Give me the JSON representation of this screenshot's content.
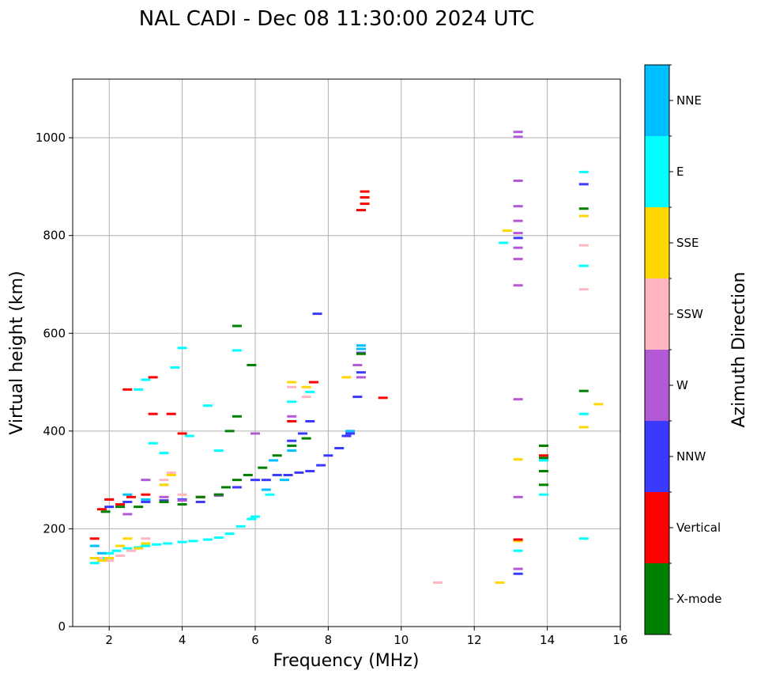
{
  "chart_data": {
    "type": "scatter",
    "title": "NAL CADI - Dec 08 11:30:00 2024 UTC",
    "xlabel": "Frequency (MHz)",
    "ylabel": "Virtual height (km)",
    "xlim": [
      1,
      16
    ],
    "ylim": [
      0,
      1120
    ],
    "xticks": [
      2,
      4,
      6,
      8,
      10,
      12,
      14,
      16
    ],
    "yticks": [
      0,
      200,
      400,
      600,
      800,
      1000
    ],
    "grid": true,
    "colorbar": {
      "label": "Azimuth Direction",
      "categories": [
        {
          "name": "X-mode",
          "color": "#008000"
        },
        {
          "name": "Vertical",
          "color": "#ff0000"
        },
        {
          "name": "NNW",
          "color": "#3a3aff"
        },
        {
          "name": "W",
          "color": "#b259d6"
        },
        {
          "name": "SSW",
          "color": "#ffb6c1"
        },
        {
          "name": "SSE",
          "color": "#ffd700"
        },
        {
          "name": "E",
          "color": "#00ffff"
        },
        {
          "name": "NNE",
          "color": "#00bfff"
        }
      ]
    },
    "series": [
      {
        "name": "E",
        "points": [
          [
            1.6,
            130
          ],
          [
            1.8,
            140
          ],
          [
            2.0,
            150
          ],
          [
            2.2,
            155
          ],
          [
            2.5,
            160
          ],
          [
            2.8,
            162
          ],
          [
            3.0,
            165
          ],
          [
            3.3,
            168
          ],
          [
            3.6,
            170
          ],
          [
            4.0,
            173
          ],
          [
            4.3,
            175
          ],
          [
            4.7,
            178
          ],
          [
            5.0,
            182
          ],
          [
            5.3,
            190
          ],
          [
            5.6,
            205
          ],
          [
            5.9,
            220
          ],
          [
            6.0,
            225
          ],
          [
            2.8,
            485
          ],
          [
            3.0,
            505
          ],
          [
            3.2,
            375
          ],
          [
            3.5,
            355
          ],
          [
            3.8,
            530
          ],
          [
            4.0,
            570
          ],
          [
            4.2,
            390
          ],
          [
            4.7,
            452
          ],
          [
            5.0,
            360
          ],
          [
            5.5,
            565
          ],
          [
            6.4,
            270
          ],
          [
            7.0,
            460
          ],
          [
            7.5,
            480
          ],
          [
            13.2,
            155
          ],
          [
            13.9,
            270
          ],
          [
            13.9,
            340
          ],
          [
            12.8,
            785
          ],
          [
            15.0,
            180
          ],
          [
            15.0,
            435
          ],
          [
            15.0,
            738
          ],
          [
            15.0,
            930
          ]
        ]
      },
      {
        "name": "NNE",
        "points": [
          [
            1.6,
            165
          ],
          [
            1.8,
            150
          ],
          [
            2.5,
            270
          ],
          [
            3.0,
            260
          ],
          [
            3.5,
            290
          ],
          [
            6.5,
            340
          ],
          [
            7.0,
            360
          ],
          [
            8.6,
            400
          ],
          [
            8.9,
            575
          ],
          [
            8.9,
            568
          ],
          [
            6.3,
            280
          ],
          [
            6.8,
            300
          ]
        ]
      },
      {
        "name": "NNW",
        "points": [
          [
            2.0,
            245
          ],
          [
            2.5,
            255
          ],
          [
            3.0,
            255
          ],
          [
            3.5,
            258
          ],
          [
            4.0,
            260
          ],
          [
            4.5,
            255
          ],
          [
            5.0,
            270
          ],
          [
            5.5,
            285
          ],
          [
            6.0,
            300
          ],
          [
            6.3,
            300
          ],
          [
            6.6,
            310
          ],
          [
            6.9,
            310
          ],
          [
            7.2,
            315
          ],
          [
            7.5,
            318
          ],
          [
            7.8,
            330
          ],
          [
            8.0,
            350
          ],
          [
            8.3,
            365
          ],
          [
            8.5,
            390
          ],
          [
            8.6,
            395
          ],
          [
            8.8,
            470
          ],
          [
            8.9,
            560
          ],
          [
            8.9,
            520
          ],
          [
            7.0,
            380
          ],
          [
            7.3,
            395
          ],
          [
            7.7,
            640
          ],
          [
            7.5,
            420
          ],
          [
            13.2,
            108
          ],
          [
            13.2,
            795
          ],
          [
            15.0,
            905
          ]
        ]
      },
      {
        "name": "W",
        "points": [
          [
            2.0,
            260
          ],
          [
            2.5,
            230
          ],
          [
            3.0,
            300
          ],
          [
            3.5,
            265
          ],
          [
            4.0,
            258
          ],
          [
            5.0,
            268
          ],
          [
            6.0,
            395
          ],
          [
            7.0,
            430
          ],
          [
            8.8,
            535
          ],
          [
            8.9,
            510
          ],
          [
            13.2,
            118
          ],
          [
            13.2,
            265
          ],
          [
            13.2,
            465
          ],
          [
            13.2,
            698
          ],
          [
            13.2,
            752
          ],
          [
            13.2,
            775
          ],
          [
            13.2,
            805
          ],
          [
            13.2,
            830
          ],
          [
            13.2,
            860
          ],
          [
            13.2,
            912
          ],
          [
            13.2,
            1002
          ],
          [
            13.2,
            1012
          ]
        ]
      },
      {
        "name": "SSW",
        "points": [
          [
            1.7,
            140
          ],
          [
            2.0,
            135
          ],
          [
            2.3,
            145
          ],
          [
            2.6,
            155
          ],
          [
            3.0,
            180
          ],
          [
            3.5,
            300
          ],
          [
            3.7,
            315
          ],
          [
            4.0,
            270
          ],
          [
            7.0,
            490
          ],
          [
            7.4,
            470
          ],
          [
            11.0,
            90
          ],
          [
            15.0,
            690
          ],
          [
            15.0,
            780
          ]
        ]
      },
      {
        "name": "SSE",
        "points": [
          [
            1.6,
            140
          ],
          [
            1.8,
            135
          ],
          [
            2.0,
            140
          ],
          [
            2.3,
            165
          ],
          [
            2.5,
            180
          ],
          [
            2.8,
            160
          ],
          [
            3.0,
            170
          ],
          [
            3.5,
            290
          ],
          [
            3.7,
            310
          ],
          [
            7.0,
            500
          ],
          [
            7.4,
            490
          ],
          [
            8.5,
            510
          ],
          [
            8.9,
            558
          ],
          [
            12.7,
            90
          ],
          [
            13.2,
            175
          ],
          [
            13.2,
            342
          ],
          [
            12.9,
            810
          ],
          [
            15.0,
            408
          ],
          [
            15.4,
            455
          ],
          [
            15.0,
            840
          ]
        ]
      },
      {
        "name": "Vertical",
        "points": [
          [
            1.6,
            180
          ],
          [
            1.8,
            240
          ],
          [
            2.0,
            260
          ],
          [
            2.3,
            250
          ],
          [
            2.6,
            265
          ],
          [
            3.0,
            270
          ],
          [
            3.2,
            435
          ],
          [
            3.2,
            510
          ],
          [
            3.5,
            255
          ],
          [
            3.7,
            435
          ],
          [
            4.0,
            395
          ],
          [
            4.5,
            265
          ],
          [
            2.5,
            485
          ],
          [
            7.0,
            420
          ],
          [
            7.6,
            500
          ],
          [
            8.9,
            852
          ],
          [
            9.0,
            865
          ],
          [
            9.0,
            878
          ],
          [
            9.0,
            890
          ],
          [
            9.5,
            468
          ],
          [
            13.2,
            178
          ],
          [
            13.9,
            350
          ]
        ]
      },
      {
        "name": "X-mode",
        "points": [
          [
            1.9,
            235
          ],
          [
            2.3,
            245
          ],
          [
            2.8,
            245
          ],
          [
            3.5,
            255
          ],
          [
            4.0,
            250
          ],
          [
            4.5,
            265
          ],
          [
            5.0,
            270
          ],
          [
            5.2,
            285
          ],
          [
            5.5,
            300
          ],
          [
            5.8,
            310
          ],
          [
            6.2,
            325
          ],
          [
            6.6,
            350
          ],
          [
            7.0,
            370
          ],
          [
            7.4,
            385
          ],
          [
            5.3,
            400
          ],
          [
            5.5,
            430
          ],
          [
            5.5,
            615
          ],
          [
            5.9,
            535
          ],
          [
            8.9,
            558
          ],
          [
            13.9,
            290
          ],
          [
            13.9,
            318
          ],
          [
            13.9,
            345
          ],
          [
            13.9,
            370
          ],
          [
            15.0,
            482
          ],
          [
            15.0,
            855
          ]
        ]
      }
    ]
  }
}
